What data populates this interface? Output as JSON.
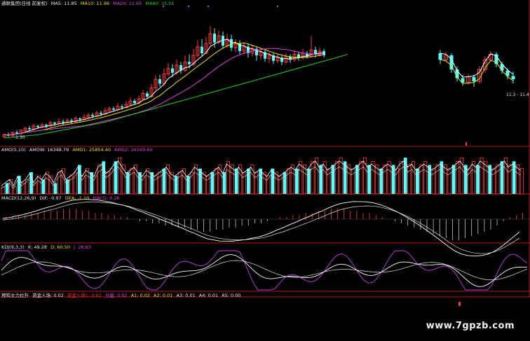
{
  "colors": {
    "background": "#000000",
    "up": "#ff3a3a",
    "down": "#54ffff",
    "ma5": "#ffffff",
    "ma10": "#f0e000",
    "ma20": "#e040e0",
    "ma60": "#20d020",
    "separator": "#b01818"
  },
  "panels": {
    "price": {
      "stock": "通联集团(日线 前复权)",
      "ma5": "MA5: 11.85",
      "ma10": "MA10: 11.96",
      "ma20": "MA20: 11.65",
      "ma60": "MA60: 15.01",
      "low_marker": "-1.30",
      "high_marker": "11.3 - 11.4"
    },
    "amo": {
      "title": "AMO(5,10)",
      "amow": "AMOW: 16348.79",
      "amo1": "AMO1: 25854.40",
      "amo2": "AMO2: 26169.60"
    },
    "macd": {
      "title": "MACD(12,26,9)",
      "dif": "DIF: -0.97",
      "dea": "DEA: -1.10",
      "macd": "MACD: 0.26"
    },
    "kdj": {
      "title": "KDJ(9,3,3)",
      "k": "K: 49.28",
      "d": "D: 60.50",
      "j": "J: 26.83"
    },
    "fund": {
      "title": "预知主力拉升",
      "inflow": "资金入场: 0.02",
      "a1_label": "资金入场1: 0.02",
      "a2_label": "分量: 0.02",
      "a1": "A1: 0.02",
      "a2": "A2: 0.01",
      "a3": "A3: 0.01",
      "a4": "A4: 0.01",
      "a5": "A5: 0.00"
    }
  },
  "watermark": "www.7gpzb.com",
  "chart_data": {
    "type": "candlestick",
    "candles": [
      [
        0.3,
        0.5,
        0.2,
        0.6
      ],
      [
        0.5,
        0.4,
        0.3,
        0.7
      ],
      [
        0.4,
        0.7,
        0.3,
        0.8
      ],
      [
        0.7,
        0.6,
        0.5,
        0.9
      ],
      [
        0.6,
        0.9,
        0.5,
        1.0
      ],
      [
        0.9,
        1.1,
        0.8,
        1.2
      ],
      [
        1.1,
        1.0,
        0.8,
        1.3
      ],
      [
        1.0,
        1.3,
        0.9,
        1.5
      ],
      [
        1.3,
        1.2,
        1.0,
        1.4
      ],
      [
        1.2,
        1.4,
        1.1,
        1.6
      ],
      [
        1.4,
        1.3,
        1.1,
        1.5
      ],
      [
        1.3,
        1.6,
        1.2,
        1.8
      ],
      [
        1.6,
        1.5,
        1.3,
        1.7
      ],
      [
        1.5,
        1.7,
        1.4,
        2.0
      ],
      [
        1.7,
        1.6,
        1.4,
        1.9
      ],
      [
        1.6,
        1.8,
        1.5,
        2.0
      ],
      [
        1.8,
        1.7,
        1.5,
        2.0
      ],
      [
        1.7,
        2.0,
        1.6,
        2.2
      ],
      [
        2.0,
        1.9,
        1.7,
        2.1
      ],
      [
        1.9,
        2.1,
        1.8,
        2.4
      ],
      [
        2.1,
        2.3,
        2.0,
        2.5
      ],
      [
        2.3,
        2.2,
        2.0,
        2.5
      ],
      [
        2.2,
        2.5,
        2.1,
        2.7
      ],
      [
        2.5,
        2.4,
        2.2,
        2.7
      ],
      [
        2.4,
        2.7,
        2.3,
        3.0
      ],
      [
        2.7,
        2.9,
        2.6,
        3.1
      ],
      [
        2.9,
        2.8,
        2.6,
        3.1
      ],
      [
        2.8,
        3.1,
        2.7,
        3.4
      ],
      [
        3.1,
        3.0,
        2.8,
        3.3
      ],
      [
        3.0,
        3.3,
        2.9,
        3.6
      ],
      [
        3.3,
        3.6,
        3.2,
        3.9
      ],
      [
        3.6,
        3.4,
        3.2,
        3.8
      ],
      [
        3.4,
        3.8,
        3.3,
        4.1
      ],
      [
        3.8,
        4.3,
        3.7,
        4.6
      ],
      [
        4.3,
        4.0,
        3.8,
        4.5
      ],
      [
        4.0,
        4.8,
        3.9,
        5.2
      ],
      [
        4.8,
        5.6,
        4.6,
        6.0
      ],
      [
        5.6,
        5.2,
        4.9,
        6.0
      ],
      [
        5.2,
        6.1,
        5.0,
        6.6
      ],
      [
        6.1,
        6.6,
        5.9,
        7.1
      ],
      [
        6.6,
        6.2,
        5.8,
        7.0
      ],
      [
        6.2,
        6.9,
        6.0,
        7.4
      ],
      [
        6.9,
        6.4,
        6.1,
        7.2
      ],
      [
        6.4,
        7.2,
        6.3,
        7.8
      ],
      [
        7.2,
        7.0,
        6.6,
        7.9
      ],
      [
        7.0,
        7.8,
        6.8,
        8.4
      ],
      [
        7.8,
        8.6,
        7.6,
        9.2
      ],
      [
        8.6,
        8.0,
        7.7,
        9.3
      ],
      [
        8.0,
        8.9,
        7.9,
        9.5
      ],
      [
        8.9,
        9.8,
        8.7,
        10.5
      ],
      [
        9.8,
        9.0,
        8.5,
        10.3
      ],
      [
        9.0,
        9.6,
        8.8,
        10.1
      ],
      [
        9.6,
        8.7,
        8.4,
        10.0
      ],
      [
        8.7,
        9.3,
        8.5,
        9.8
      ],
      [
        9.3,
        8.5,
        8.2,
        9.7
      ],
      [
        8.5,
        8.9,
        8.1,
        9.3
      ],
      [
        8.9,
        8.2,
        7.9,
        9.2
      ],
      [
        8.2,
        8.6,
        7.9,
        9.0
      ],
      [
        8.6,
        8.0,
        7.6,
        8.9
      ],
      [
        8.0,
        8.4,
        7.7,
        8.8
      ],
      [
        8.4,
        7.8,
        7.3,
        8.6
      ],
      [
        7.8,
        8.1,
        7.4,
        8.5
      ],
      [
        8.1,
        7.5,
        7.2,
        8.3
      ],
      [
        7.5,
        7.8,
        7.1,
        8.1
      ],
      [
        7.8,
        7.3,
        7.0,
        8.0
      ],
      [
        7.3,
        7.6,
        7.1,
        7.9
      ],
      [
        7.6,
        7.2,
        6.9,
        7.8
      ],
      [
        7.2,
        7.7,
        7.0,
        8.0
      ],
      [
        7.7,
        7.4,
        7.1,
        7.9
      ],
      [
        7.4,
        7.9,
        7.2,
        8.3
      ],
      [
        7.9,
        7.6,
        7.3,
        8.1
      ],
      [
        7.6,
        8.0,
        7.4,
        8.4
      ],
      [
        8.0,
        7.7,
        7.5,
        8.2
      ],
      [
        7.7,
        8.3,
        7.6,
        9.6
      ],
      [
        8.3,
        7.9,
        7.6,
        8.6
      ],
      [
        7.9,
        8.2,
        7.7,
        8.5
      ],
      [
        8.2,
        7.8,
        7.6,
        8.4
      ]
    ],
    "right_candles": [
      [
        8.0,
        7.4,
        7.0,
        8.3
      ],
      [
        7.4,
        7.8,
        7.2,
        8.1
      ],
      [
        7.8,
        6.5,
        6.2,
        8.0
      ],
      [
        6.5,
        5.7,
        5.4,
        6.8
      ],
      [
        5.7,
        5.3,
        5.0,
        6.0
      ],
      [
        5.3,
        5.8,
        5.1,
        6.1
      ],
      [
        5.8,
        5.4,
        4.9,
        6.0
      ],
      [
        5.4,
        6.5,
        5.2,
        6.8
      ],
      [
        6.5,
        7.4,
        6.2,
        7.7
      ],
      [
        7.4,
        7.9,
        7.2,
        8.2
      ],
      [
        7.9,
        7.0,
        6.7,
        8.1
      ],
      [
        7.0,
        6.4,
        6.1,
        7.2
      ],
      [
        6.4,
        5.9,
        5.6,
        6.6
      ],
      [
        5.9,
        5.6,
        5.2,
        6.3
      ]
    ],
    "ma_green": [
      0.1,
      0.2,
      0.3,
      0.4,
      0.6,
      0.8,
      1.0,
      1.2,
      1.4,
      1.6,
      1.9,
      2.2,
      2.5,
      2.8,
      3.1,
      3.4,
      3.7,
      4.0,
      4.3,
      4.6,
      4.9,
      5.2,
      5.5,
      5.8,
      6.1,
      6.4,
      6.7,
      7.0,
      7.3,
      7.6,
      7.9,
      8.2
    ],
    "amo_bars": [
      2,
      3,
      4,
      2,
      5,
      3,
      4,
      6,
      3,
      5,
      4,
      6,
      5,
      3,
      6,
      7,
      4,
      5,
      6,
      8,
      5,
      7,
      6,
      5,
      8,
      9,
      6,
      7,
      9,
      10,
      8,
      6,
      7,
      8,
      6,
      5,
      7,
      6,
      5,
      6,
      7,
      8,
      6,
      5,
      6,
      7,
      5,
      6,
      8,
      7,
      6,
      5,
      6,
      7,
      8,
      6,
      9,
      8,
      7,
      8,
      6,
      7,
      8,
      6,
      7,
      6,
      5,
      7,
      6,
      5,
      6,
      7,
      8,
      7,
      9,
      8,
      7,
      9,
      10,
      8,
      9,
      7,
      8,
      9,
      10,
      9,
      8,
      7,
      8,
      9,
      10,
      8,
      9,
      8,
      7,
      8,
      9,
      8,
      7,
      9,
      10,
      8,
      9,
      7,
      8,
      9,
      8,
      7,
      8,
      9,
      8,
      7,
      8,
      9,
      10,
      8,
      7,
      9,
      8,
      10,
      9,
      8,
      7,
      8,
      9,
      10,
      8,
      9,
      8,
      7
    ],
    "macd_bars": [
      1,
      1,
      2,
      2,
      3,
      3,
      4,
      4,
      4,
      5,
      5,
      5,
      4,
      4,
      3,
      3,
      2,
      2,
      1,
      1,
      0,
      -1,
      -1,
      -2,
      -2,
      -3,
      -3,
      -4,
      -4,
      -5,
      -5,
      -6,
      -6,
      -5,
      -5,
      -4,
      -4,
      -3,
      -3,
      -2,
      -2,
      -1,
      0,
      1,
      1,
      2,
      2,
      3,
      3,
      4,
      4,
      5,
      5,
      5,
      4,
      4,
      3,
      3,
      2,
      1,
      0,
      -1,
      -2,
      -3,
      -4,
      -5,
      -6,
      -7,
      -8,
      -9,
      -10,
      -10,
      -9,
      -8,
      -7,
      -6,
      -5,
      -3,
      -1,
      1,
      2,
      3
    ]
  }
}
